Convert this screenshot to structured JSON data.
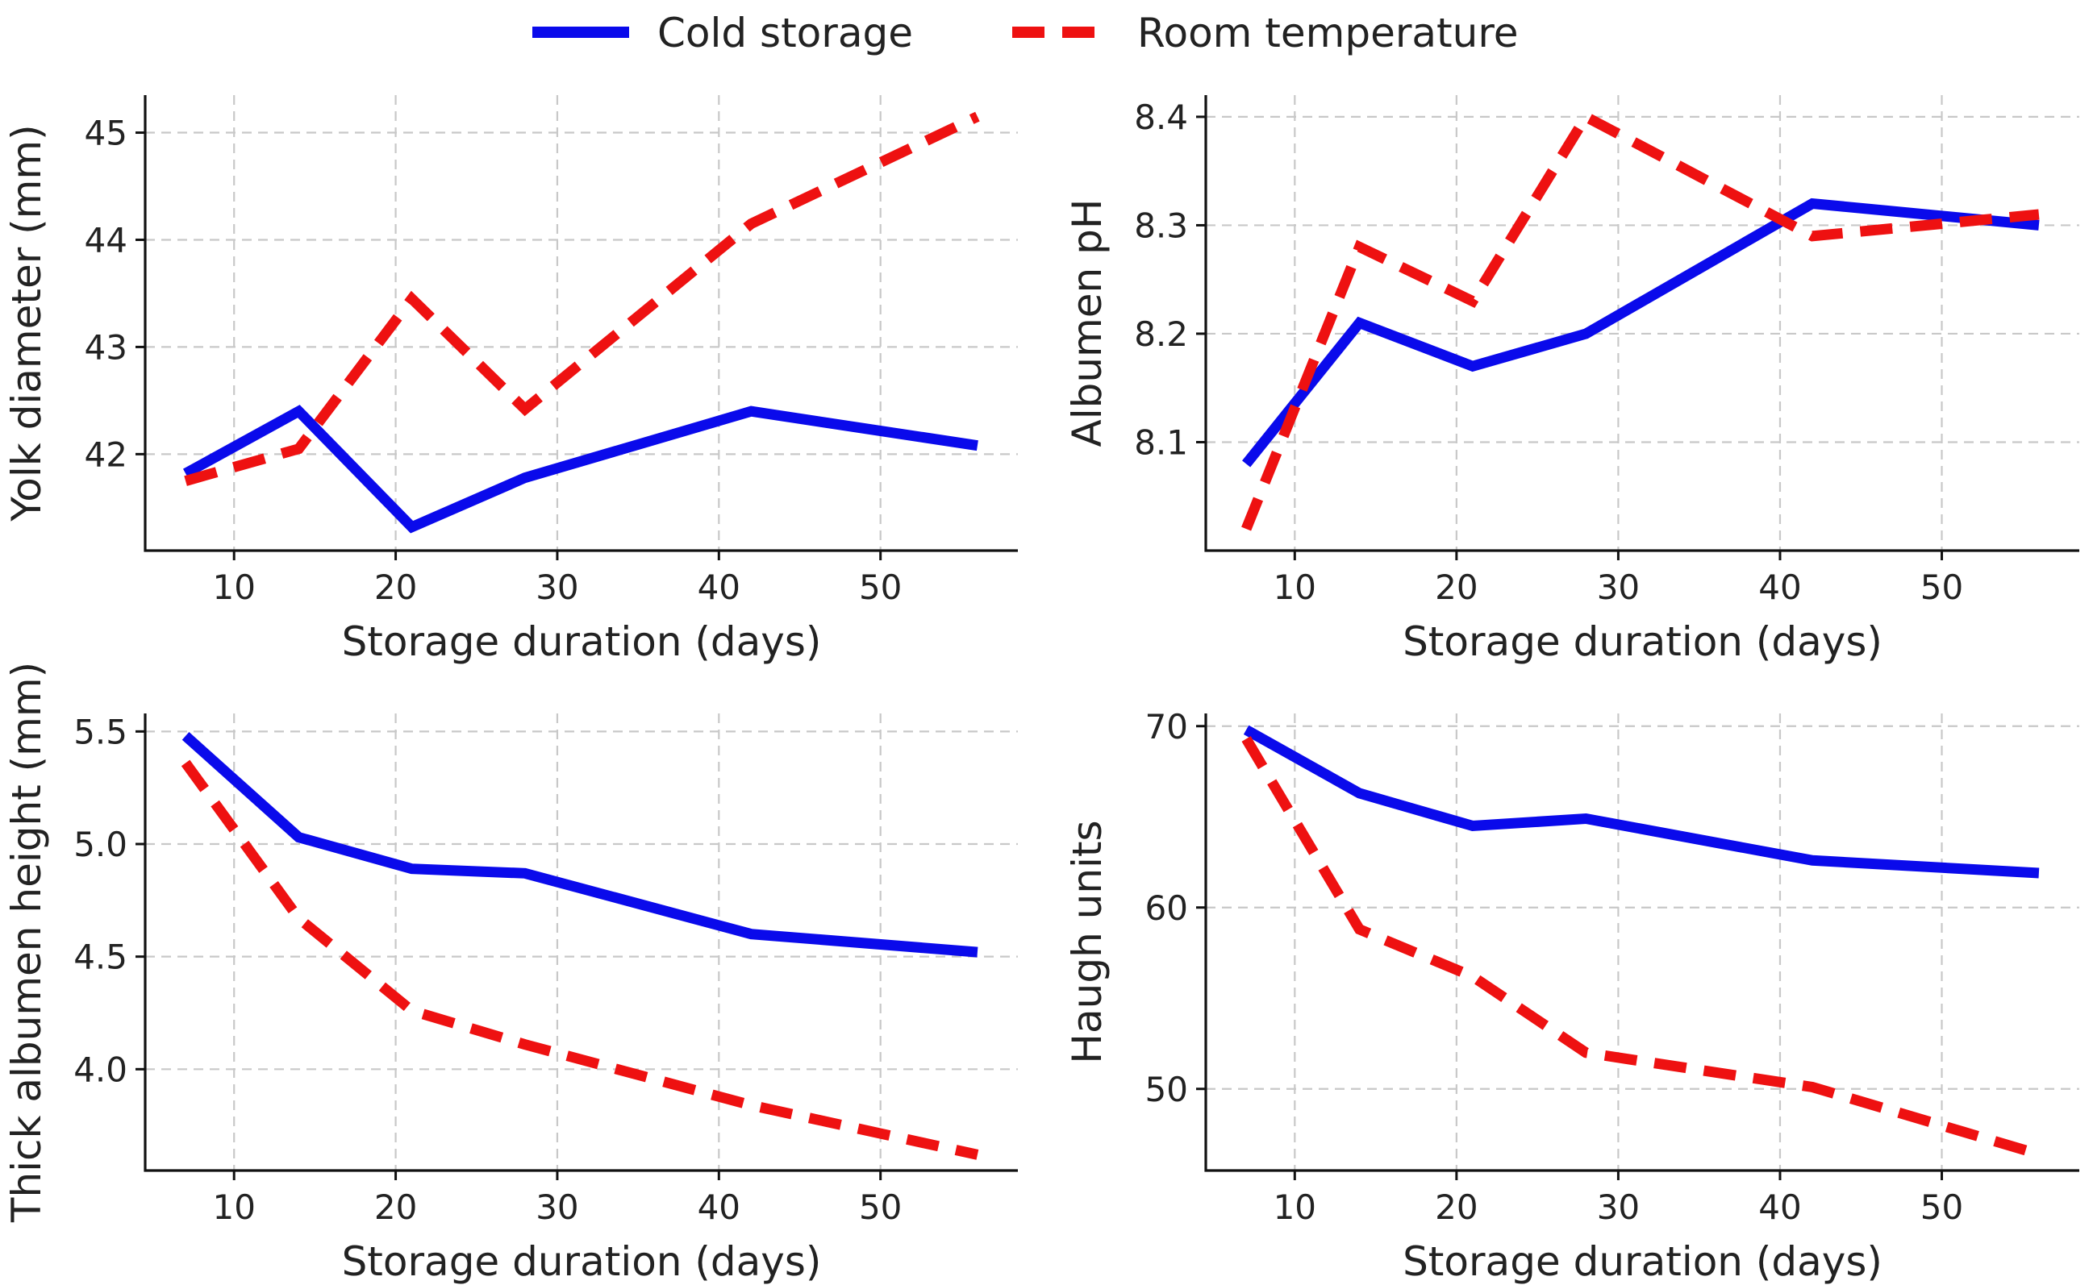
{
  "legend": {
    "cold_label": "Cold storage",
    "room_label": "Room temperature"
  },
  "colors": {
    "cold": "#0a0aeb",
    "room": "#ee1111"
  },
  "chart_data": [
    {
      "type": "line",
      "xlabel": "Storage duration (days)",
      "ylabel": "Yolk diameter (mm)",
      "xlim": [
        4.5,
        58.5
      ],
      "ylim": [
        41.1,
        45.35
      ],
      "xticks": [
        10,
        20,
        30,
        40,
        50
      ],
      "yticks": [
        42,
        43,
        44,
        45
      ],
      "ytick_labels": [
        "42",
        "43",
        "44",
        "45"
      ],
      "x": [
        7,
        14,
        21,
        28,
        42,
        56
      ],
      "series": [
        {
          "name": "Cold storage",
          "values": [
            41.82,
            42.4,
            41.32,
            41.78,
            42.4,
            42.08
          ]
        },
        {
          "name": "Room temperature",
          "values": [
            41.75,
            42.05,
            43.45,
            42.42,
            44.15,
            45.15
          ]
        }
      ]
    },
    {
      "type": "line",
      "xlabel": "Storage duration (days)",
      "ylabel": "Albumen pH",
      "xlim": [
        4.5,
        58.5
      ],
      "ylim": [
        8.0,
        8.42
      ],
      "xticks": [
        10,
        20,
        30,
        40,
        50
      ],
      "yticks": [
        8.1,
        8.2,
        8.3,
        8.4
      ],
      "ytick_labels": [
        "8.1",
        "8.2",
        "8.3",
        "8.4"
      ],
      "x": [
        7,
        14,
        21,
        28,
        42,
        56
      ],
      "series": [
        {
          "name": "Cold storage",
          "values": [
            8.08,
            8.21,
            8.17,
            8.2,
            8.32,
            8.3
          ]
        },
        {
          "name": "Room temperature",
          "values": [
            8.02,
            8.28,
            8.23,
            8.4,
            8.29,
            8.31
          ]
        }
      ]
    },
    {
      "type": "line",
      "xlabel": "Storage duration (days)",
      "ylabel": "Thick albumen height (mm)",
      "xlim": [
        4.5,
        58.5
      ],
      "ylim": [
        3.55,
        5.58
      ],
      "xticks": [
        10,
        20,
        30,
        40,
        50
      ],
      "yticks": [
        4.0,
        4.5,
        5.0,
        5.5
      ],
      "ytick_labels": [
        "4.0",
        "4.5",
        "5.0",
        "5.5"
      ],
      "x": [
        7,
        14,
        21,
        28,
        42,
        56
      ],
      "series": [
        {
          "name": "Cold storage",
          "values": [
            5.48,
            5.03,
            4.89,
            4.87,
            4.6,
            4.52
          ]
        },
        {
          "name": "Room temperature",
          "values": [
            5.36,
            4.67,
            4.26,
            4.11,
            3.84,
            3.62
          ]
        }
      ]
    },
    {
      "type": "line",
      "xlabel": "Storage duration (days)",
      "ylabel": "Haugh units",
      "xlim": [
        4.5,
        58.5
      ],
      "ylim": [
        45.5,
        70.7
      ],
      "xticks": [
        10,
        20,
        30,
        40,
        50
      ],
      "yticks": [
        50,
        60,
        70
      ],
      "ytick_labels": [
        "50",
        "60",
        "70"
      ],
      "x": [
        7,
        14,
        21,
        28,
        42,
        56
      ],
      "series": [
        {
          "name": "Cold storage",
          "values": [
            69.8,
            66.3,
            64.5,
            64.9,
            62.6,
            61.9
          ]
        },
        {
          "name": "Room temperature",
          "values": [
            69.3,
            58.8,
            56.2,
            52.0,
            50.1,
            46.4
          ]
        }
      ]
    }
  ]
}
